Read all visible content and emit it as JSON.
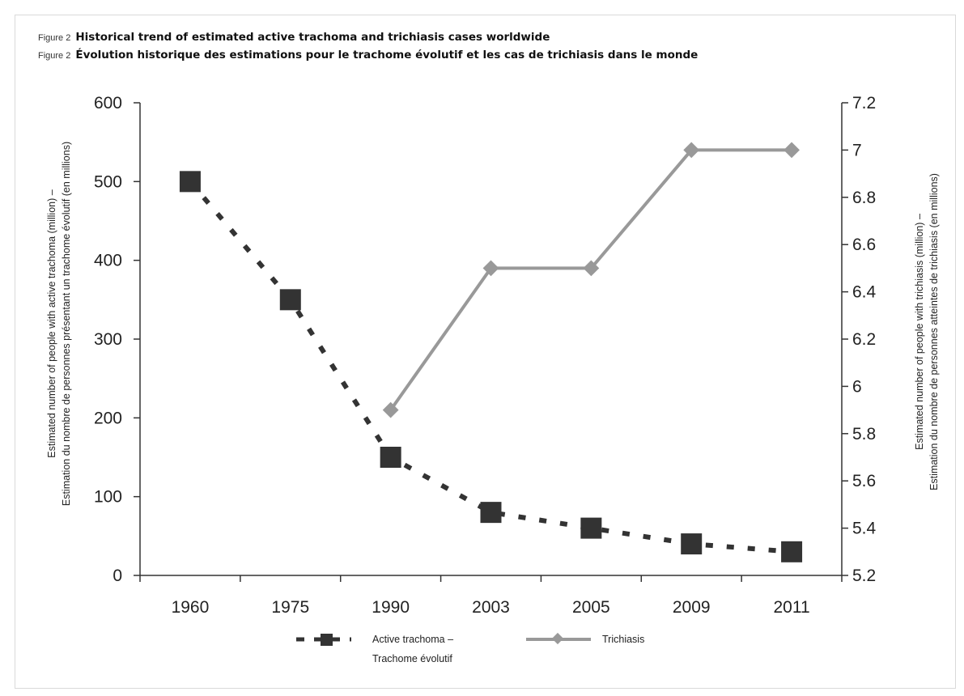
{
  "figure": {
    "label_en": "Figure 2",
    "title_en": "Historical trend of estimated active trachoma and trichiasis cases worldwide",
    "label_fr": "Figure 2",
    "title_fr": "Évolution historique des estimations pour le trachome évolutif et les cas de trichiasis dans le monde"
  },
  "chart_data": {
    "type": "line",
    "title": "Historical trend of estimated active trachoma and trichiasis cases worldwide",
    "categories": [
      "1960",
      "1975",
      "1990",
      "2003",
      "2005",
      "2009",
      "2011"
    ],
    "y_left": {
      "label_line1": "Estimated number of people with active trachoma (million) –",
      "label_line2": "Estimation du nombre de personnes présentant un trachome évolutif (en millions)",
      "range": [
        0,
        600
      ],
      "ticks": [
        "0",
        "100",
        "200",
        "300",
        "400",
        "500",
        "600"
      ]
    },
    "y_right": {
      "label_line1": "Estimated number of people with trichiasis (million) –",
      "label_line2": "Estimation du nombre de personnes atteintes de trichiasis (en millions)",
      "range": [
        5.2,
        7.2
      ],
      "ticks": [
        "5.2",
        "5.4",
        "5.6",
        "5.8",
        "6",
        "6.2",
        "6.4",
        "6.6",
        "6.8",
        "7",
        "7.2"
      ]
    },
    "series": [
      {
        "name_line1": "Active trachoma –",
        "name_line2": "Trachome évolutif",
        "axis": "left",
        "style": "dashed-square",
        "color": "#333333",
        "values": [
          500,
          350,
          150,
          80,
          60,
          40,
          30
        ]
      },
      {
        "name_line1": "Trichiasis",
        "name_line2": "",
        "axis": "right",
        "style": "solid-diamond",
        "color": "#999999",
        "values": [
          null,
          null,
          5.9,
          6.5,
          6.5,
          7.0,
          7.0
        ]
      }
    ],
    "grid": false,
    "legend_position": "bottom"
  }
}
